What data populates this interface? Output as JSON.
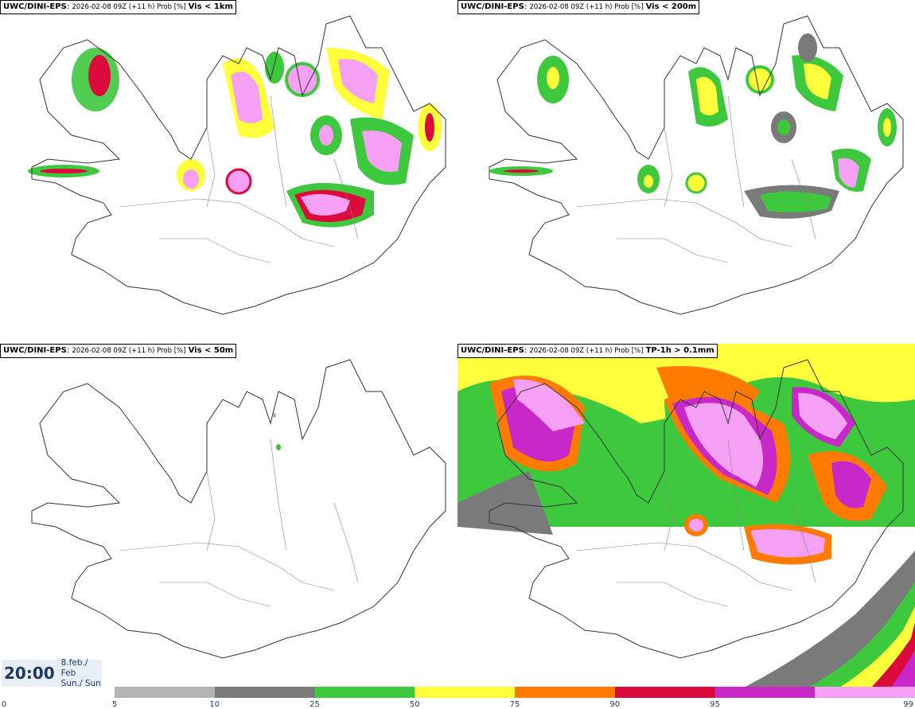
{
  "panels": [
    {
      "model": "UWC/DINI-EPS",
      "run": "2026-02-08 09Z (+11 h) Prob [%]",
      "param": "Vis < 1km"
    },
    {
      "model": "UWC/DINI-EPS",
      "run": "2026-02-08 09Z (+11 h) Prob [%]",
      "param": "Vis < 200m"
    },
    {
      "model": "UWC/DINI-EPS",
      "run": "2026-02-08 09Z (+11 h) Prob [%]",
      "param": "Vis < 50m"
    },
    {
      "model": "UWC/DINI-EPS",
      "run": "2026-02-08 09Z (+11 h) Prob [%]",
      "param": "TP-1h > 0.1mm"
    }
  ],
  "valid": {
    "time": "20:00",
    "date_line1": "8.feb./ Feb",
    "date_line2": "Sun./ Sun"
  },
  "legend": {
    "ticks": [
      "0",
      "5",
      "10",
      "25",
      "50",
      "75",
      "90",
      "95",
      "99"
    ],
    "colors": [
      "#b4b4b4",
      "#7a7a7a",
      "#3ec83e",
      "#ffff3c",
      "#ff7a00",
      "#dc0a3c",
      "#c828c8",
      "#f5a0f5"
    ]
  }
}
